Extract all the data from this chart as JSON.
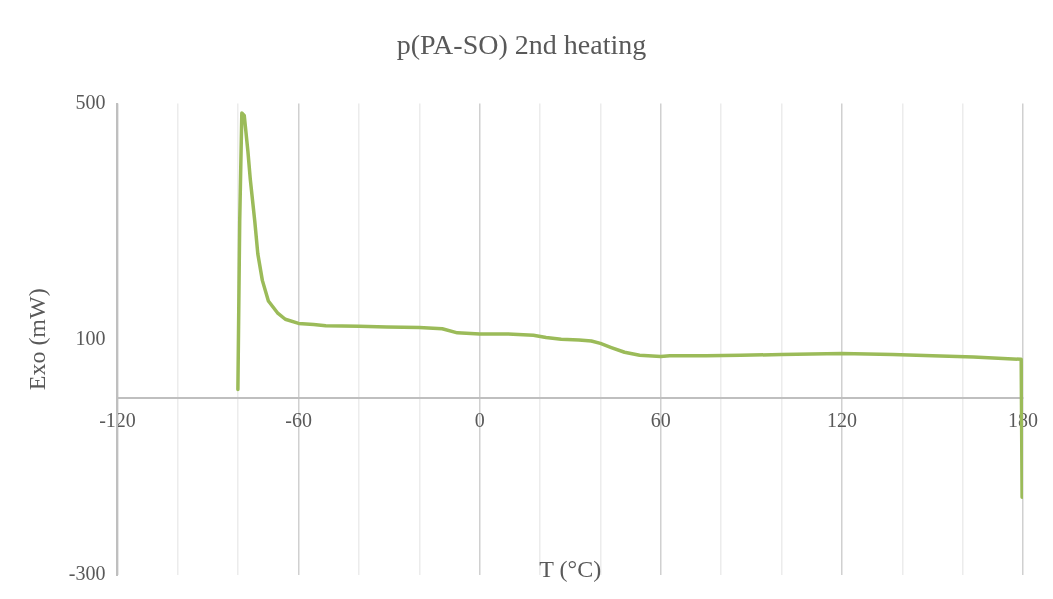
{
  "chart_data": {
    "type": "line",
    "title": "p(PA-SO) 2nd heating",
    "xlabel": "T (°C)",
    "ylabel": "Exo (mW)",
    "xlim": [
      -120,
      180
    ],
    "xticks": [
      -120,
      {
        "value": -100,
        "label": null
      },
      {
        "value": -80,
        "label": null
      },
      -60,
      {
        "value": -40,
        "label": null
      },
      {
        "value": -20,
        "label": null
      },
      0,
      {
        "value": 20,
        "label": null
      },
      {
        "value": 40,
        "label": null
      },
      60,
      {
        "value": 80,
        "label": null
      },
      {
        "value": 100,
        "label": null
      },
      120,
      {
        "value": 140,
        "label": null
      },
      {
        "value": 160,
        "label": null
      },
      180
    ],
    "ylim": [
      -300,
      500
    ],
    "yticks": [
      -300,
      100,
      500
    ],
    "grid": "x",
    "legend": false,
    "marker": "none",
    "line_style": "solid",
    "series": [
      {
        "color": "#9bbb59",
        "x": [
          -80.1,
          -79.5,
          -78.8,
          -78,
          -76.8,
          -76,
          -74.5,
          -73.5,
          -72,
          -70,
          -67,
          -64.4,
          -60,
          -55,
          -51,
          -40,
          -30.8,
          -20,
          -12.4,
          -7.4,
          0,
          9.4,
          17.8,
          22,
          27,
          32.9,
          37,
          40,
          43.6,
          48,
          53,
          60,
          63,
          75,
          86.5,
          100,
          110,
          120,
          136.8,
          150,
          163.6,
          175,
          179.4,
          179.7,
          180
        ],
        "values": [
          15,
          300,
          484,
          480,
          420,
          372,
          300,
          245,
          200,
          165,
          145,
          134,
          127,
          125,
          123,
          122,
          121,
          120,
          118,
          111,
          109,
          109,
          107,
          103,
          100,
          99,
          97,
          93,
          86,
          78,
          73,
          71,
          72,
          72,
          73,
          74,
          75,
          76,
          74,
          72,
          70,
          67,
          66,
          -168,
          -12
        ]
      }
    ]
  }
}
